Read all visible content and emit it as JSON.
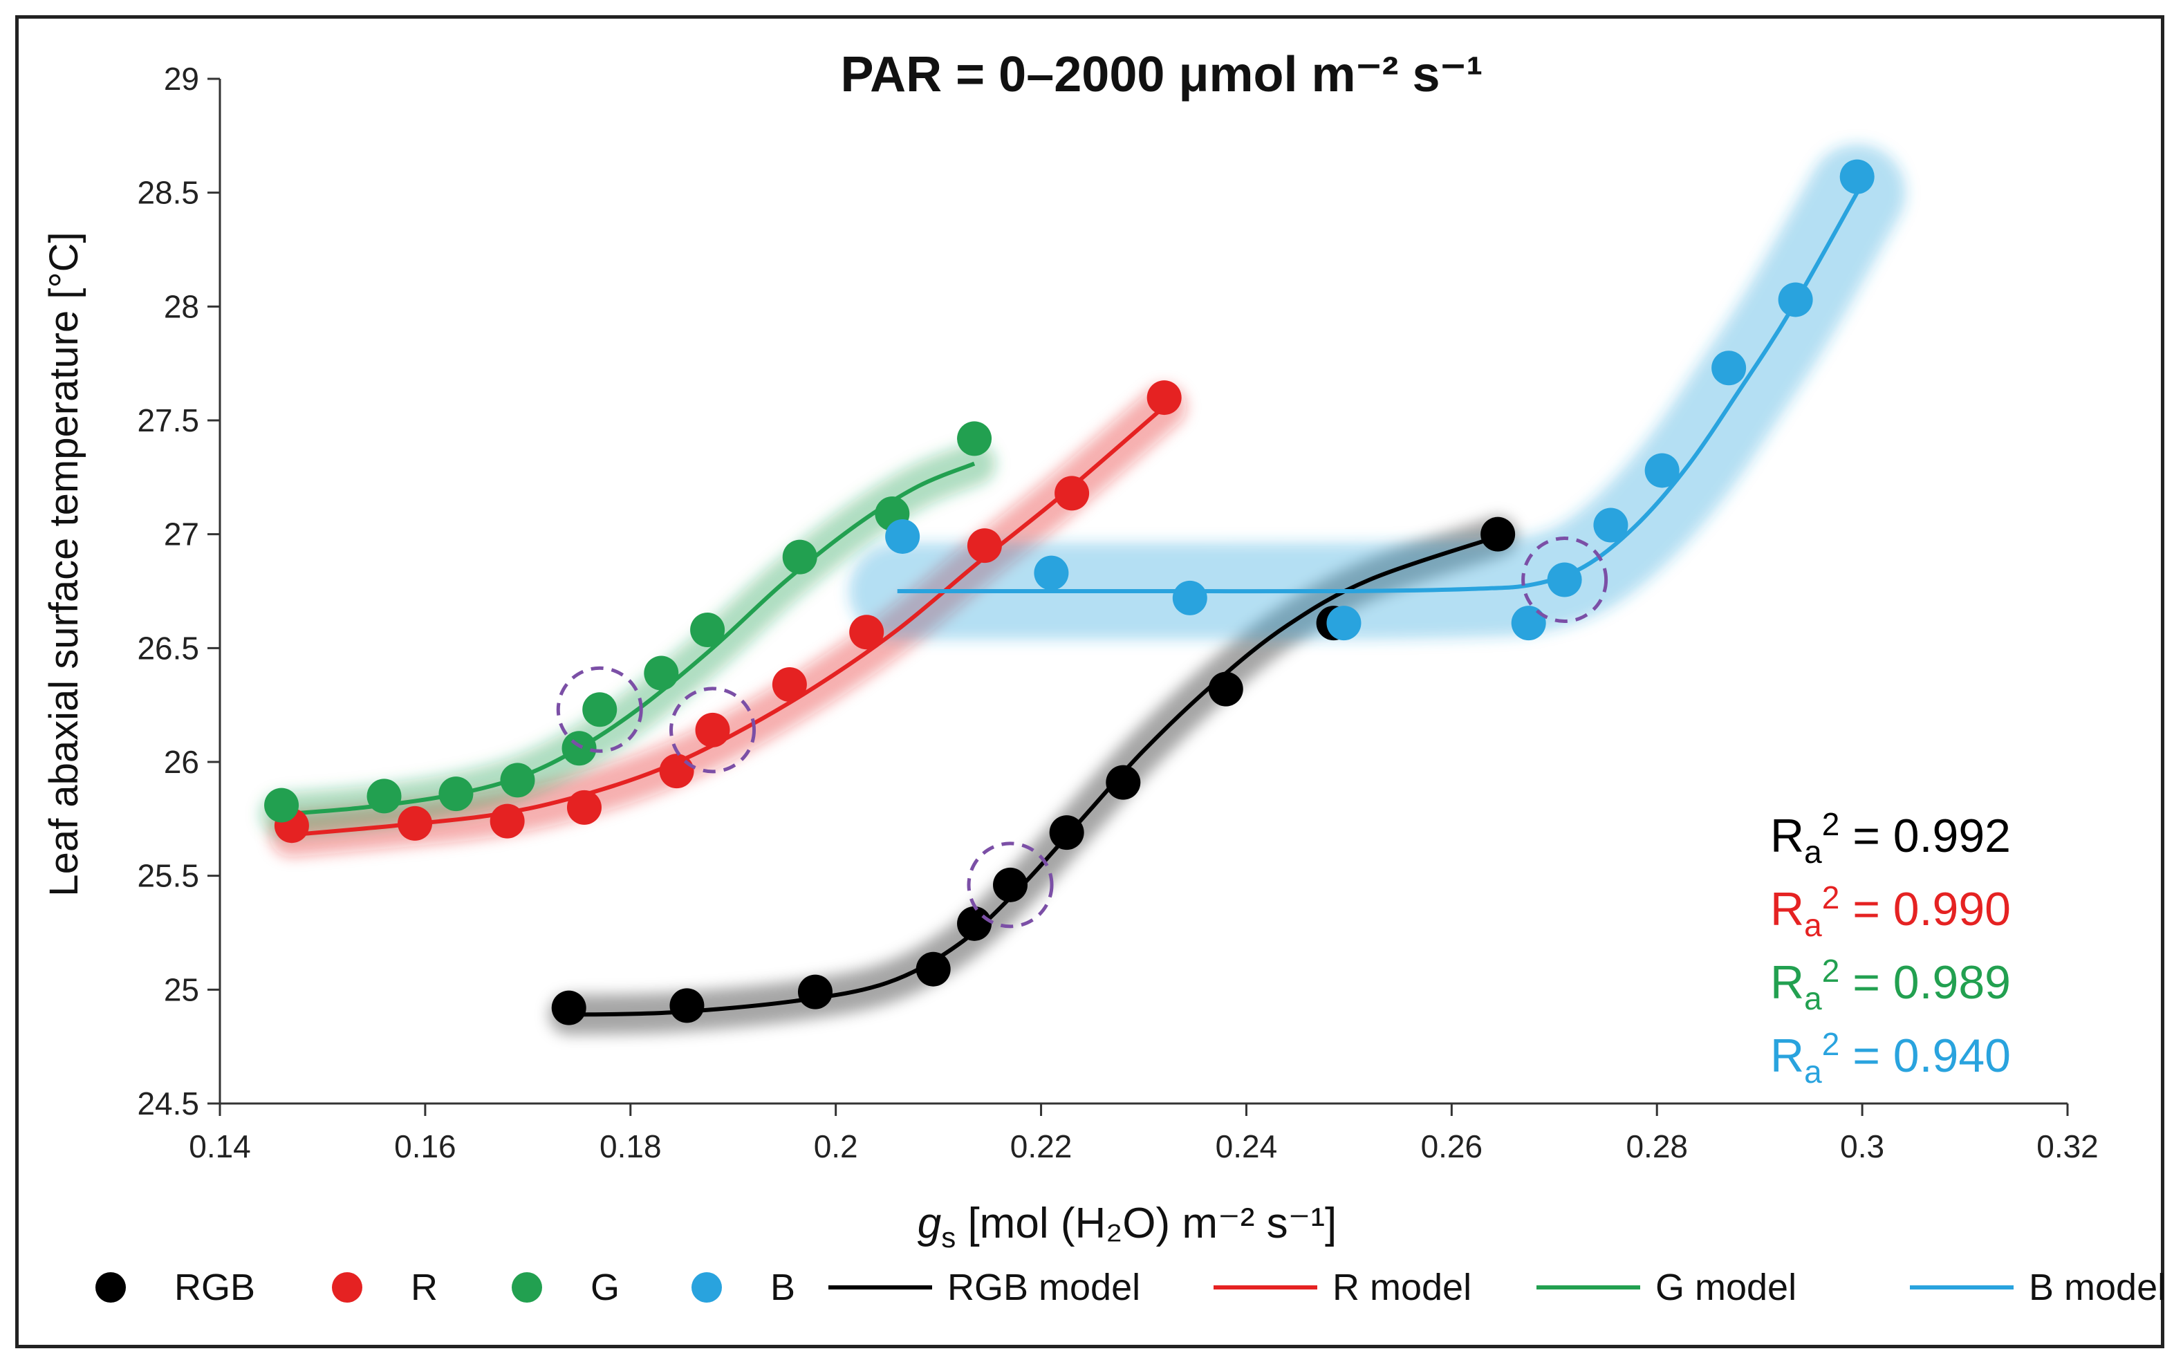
{
  "chart_data": {
    "type": "scatter",
    "title": "PAR = 0–2000 μmol m⁻² s⁻¹",
    "xlabel": {
      "main": "g",
      "sub": "s",
      "rest": " [mol (H₂O) m⁻² s⁻¹]"
    },
    "ylabel": "Leaf abaxial surface temperature [°C]",
    "xlim": [
      0.14,
      0.32
    ],
    "ylim": [
      24.5,
      29
    ],
    "x_ticks": [
      "0.14",
      "0.16",
      "0.18",
      "0.2",
      "0.22",
      "0.24",
      "0.26",
      "0.28",
      "0.3",
      "0.32"
    ],
    "y_ticks": [
      "24.5",
      "25",
      "25.5",
      "26",
      "26.5",
      "27",
      "27.5",
      "28",
      "28.5",
      "29"
    ],
    "grid": false,
    "legend_position": "bottom",
    "series": [
      {
        "name": "RGB",
        "color": "#000000",
        "points": [
          [
            0.174,
            24.92
          ],
          [
            0.1855,
            24.93
          ],
          [
            0.198,
            24.99
          ],
          [
            0.2095,
            25.09
          ],
          [
            0.2135,
            25.29
          ],
          [
            0.217,
            25.46
          ],
          [
            0.2225,
            25.69
          ],
          [
            0.228,
            25.91
          ],
          [
            0.238,
            26.32
          ],
          [
            0.2485,
            26.61
          ],
          [
            0.2645,
            27.0
          ]
        ],
        "model": [
          [
            0.174,
            24.89
          ],
          [
            0.184,
            24.9
          ],
          [
            0.196,
            24.95
          ],
          [
            0.205,
            25.03
          ],
          [
            0.212,
            25.2
          ],
          [
            0.218,
            25.45
          ],
          [
            0.224,
            25.75
          ],
          [
            0.23,
            26.05
          ],
          [
            0.237,
            26.35
          ],
          [
            0.244,
            26.6
          ],
          [
            0.252,
            26.8
          ],
          [
            0.2645,
            26.99
          ]
        ],
        "model_name": "RGB model",
        "r2_label": "R",
        "r2_sub": "a",
        "r2_value": " = 0.992",
        "circled": [
          0.217,
          25.46
        ]
      },
      {
        "name": "R",
        "color": "#e52222",
        "points": [
          [
            0.147,
            25.72
          ],
          [
            0.159,
            25.73
          ],
          [
            0.168,
            25.74
          ],
          [
            0.1755,
            25.8
          ],
          [
            0.1845,
            25.96
          ],
          [
            0.188,
            26.14
          ],
          [
            0.1955,
            26.34
          ],
          [
            0.203,
            26.57
          ],
          [
            0.2145,
            26.95
          ],
          [
            0.223,
            27.18
          ],
          [
            0.232,
            27.6
          ]
        ],
        "model": [
          [
            0.147,
            25.68
          ],
          [
            0.157,
            25.72
          ],
          [
            0.167,
            25.77
          ],
          [
            0.175,
            25.85
          ],
          [
            0.183,
            25.97
          ],
          [
            0.19,
            26.12
          ],
          [
            0.198,
            26.33
          ],
          [
            0.206,
            26.58
          ],
          [
            0.214,
            26.88
          ],
          [
            0.222,
            27.17
          ],
          [
            0.232,
            27.56
          ]
        ],
        "model_name": "R model",
        "r2_label": "R",
        "r2_sub": "a",
        "r2_value": " = 0.990",
        "circled": [
          0.188,
          26.14
        ]
      },
      {
        "name": "G",
        "color": "#22a050",
        "points": [
          [
            0.146,
            25.81
          ],
          [
            0.156,
            25.85
          ],
          [
            0.163,
            25.86
          ],
          [
            0.169,
            25.92
          ],
          [
            0.175,
            26.06
          ],
          [
            0.177,
            26.23
          ],
          [
            0.183,
            26.39
          ],
          [
            0.1875,
            26.58
          ],
          [
            0.1965,
            26.9
          ],
          [
            0.2055,
            27.09
          ],
          [
            0.2135,
            27.42
          ]
        ],
        "model": [
          [
            0.146,
            25.77
          ],
          [
            0.154,
            25.8
          ],
          [
            0.162,
            25.85
          ],
          [
            0.169,
            25.93
          ],
          [
            0.175,
            26.06
          ],
          [
            0.181,
            26.24
          ],
          [
            0.188,
            26.5
          ],
          [
            0.195,
            26.79
          ],
          [
            0.202,
            27.04
          ],
          [
            0.208,
            27.21
          ],
          [
            0.2135,
            27.31
          ]
        ],
        "model_name": "G model",
        "r2_label": "R",
        "r2_sub": "a",
        "r2_value": " = 0.989",
        "circled": [
          0.177,
          26.23
        ]
      },
      {
        "name": "B",
        "color": "#29a3de",
        "points": [
          [
            0.2065,
            26.99
          ],
          [
            0.221,
            26.83
          ],
          [
            0.2345,
            26.72
          ],
          [
            0.2495,
            26.61
          ],
          [
            0.2675,
            26.61
          ],
          [
            0.271,
            26.8
          ],
          [
            0.2755,
            27.04
          ],
          [
            0.2805,
            27.28
          ],
          [
            0.287,
            27.73
          ],
          [
            0.2935,
            28.03
          ],
          [
            0.2995,
            28.57
          ]
        ],
        "model": [
          [
            0.206,
            26.75
          ],
          [
            0.22,
            26.75
          ],
          [
            0.235,
            26.75
          ],
          [
            0.25,
            26.75
          ],
          [
            0.262,
            26.76
          ],
          [
            0.268,
            26.78
          ],
          [
            0.273,
            26.86
          ],
          [
            0.278,
            27.04
          ],
          [
            0.283,
            27.3
          ],
          [
            0.288,
            27.63
          ],
          [
            0.293,
            27.98
          ],
          [
            0.2995,
            28.5
          ]
        ],
        "model_name": "B model",
        "r2_label": "R",
        "r2_sub": "a",
        "r2_value": " = 0.940",
        "circled": [
          0.271,
          26.8
        ]
      }
    ]
  }
}
